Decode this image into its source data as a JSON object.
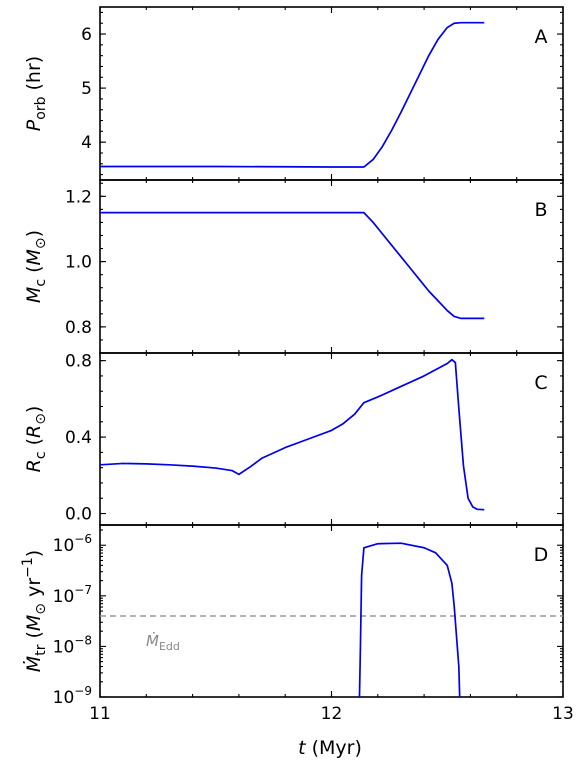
{
  "chart_data": {
    "type": "line",
    "colors": {
      "line": "#0000ee",
      "reference": "#999999"
    },
    "shared_x": {
      "label": "t (Myr)",
      "xlim": [
        11,
        13
      ],
      "ticks": [
        11,
        12,
        13
      ],
      "tick_labels": [
        "11",
        "12",
        "13"
      ]
    },
    "panels": [
      {
        "letter": "A",
        "ylabel": "P_orb (hr)",
        "ylim": [
          3.3,
          6.5
        ],
        "yticks": [
          4,
          5,
          6
        ],
        "ytick_labels": [
          "4",
          "5",
          "6"
        ],
        "scale": "linear",
        "series": [
          {
            "x": [
              11.0,
              11.5,
              12.0,
              12.14,
              12.18,
              12.22,
              12.26,
              12.3,
              12.34,
              12.38,
              12.42,
              12.46,
              12.5,
              12.53,
              12.56,
              12.6,
              12.66
            ],
            "y": [
              3.55,
              3.55,
              3.54,
              3.54,
              3.68,
              3.92,
              4.22,
              4.55,
              4.9,
              5.25,
              5.6,
              5.9,
              6.12,
              6.2,
              6.21,
              6.21,
              6.21
            ]
          }
        ]
      },
      {
        "letter": "B",
        "ylabel": "M_c (M_⊙)",
        "ylim": [
          0.72,
          1.25
        ],
        "yticks": [
          0.8,
          1.0,
          1.2
        ],
        "ytick_labels": [
          "0.8",
          "1.0",
          "1.2"
        ],
        "scale": "linear",
        "series": [
          {
            "x": [
              11.0,
              11.5,
              12.0,
              12.14,
              12.18,
              12.22,
              12.26,
              12.3,
              12.34,
              12.38,
              12.42,
              12.46,
              12.5,
              12.53,
              12.56,
              12.6,
              12.66
            ],
            "y": [
              1.15,
              1.15,
              1.15,
              1.15,
              1.12,
              1.085,
              1.05,
              1.015,
              0.98,
              0.945,
              0.91,
              0.88,
              0.85,
              0.832,
              0.826,
              0.826,
              0.826
            ]
          }
        ]
      },
      {
        "letter": "C",
        "ylabel": "R_c (R_⊙)",
        "ylim": [
          -0.06,
          0.84
        ],
        "yticks": [
          0.0,
          0.4,
          0.8
        ],
        "ytick_labels": [
          "0.0",
          "0.4",
          "0.8"
        ],
        "scale": "linear",
        "series": [
          {
            "x": [
              11.0,
              11.1,
              11.2,
              11.3,
              11.4,
              11.5,
              11.57,
              11.6,
              11.65,
              11.7,
              11.8,
              11.9,
              12.0,
              12.05,
              12.1,
              12.14,
              12.2,
              12.3,
              12.4,
              12.5,
              12.52,
              12.535,
              12.55,
              12.57,
              12.59,
              12.61,
              12.63,
              12.66
            ],
            "y": [
              0.255,
              0.262,
              0.26,
              0.255,
              0.248,
              0.238,
              0.225,
              0.205,
              0.245,
              0.29,
              0.345,
              0.39,
              0.435,
              0.47,
              0.52,
              0.58,
              0.61,
              0.665,
              0.72,
              0.785,
              0.805,
              0.79,
              0.55,
              0.25,
              0.08,
              0.035,
              0.022,
              0.02
            ]
          }
        ]
      },
      {
        "letter": "D",
        "ylabel": "Ṁ_tr (M_⊙ yr⁻¹)",
        "ylim_log10": [
          -9,
          -5.6
        ],
        "yticks_log10": [
          -9,
          -8,
          -7,
          -6
        ],
        "ytick_labels": [
          "10⁻⁹",
          "10⁻⁸",
          "10⁻⁷",
          "10⁻⁶"
        ],
        "scale": "log",
        "series": [
          {
            "x_log10_y": [
              [
                12.12,
                -9.2
              ],
              [
                12.125,
                -8.0
              ],
              [
                12.13,
                -6.6
              ],
              [
                12.14,
                -6.05
              ],
              [
                12.2,
                -5.97
              ],
              [
                12.3,
                -5.96
              ],
              [
                12.4,
                -6.05
              ],
              [
                12.45,
                -6.15
              ],
              [
                12.5,
                -6.4
              ],
              [
                12.52,
                -6.75
              ],
              [
                12.53,
                -7.2
              ],
              [
                12.54,
                -7.8
              ],
              [
                12.55,
                -8.4
              ],
              [
                12.555,
                -9.2
              ]
            ]
          }
        ],
        "reference": {
          "label": "Ṁ_Edd",
          "value": 4e-08
        }
      }
    ]
  }
}
